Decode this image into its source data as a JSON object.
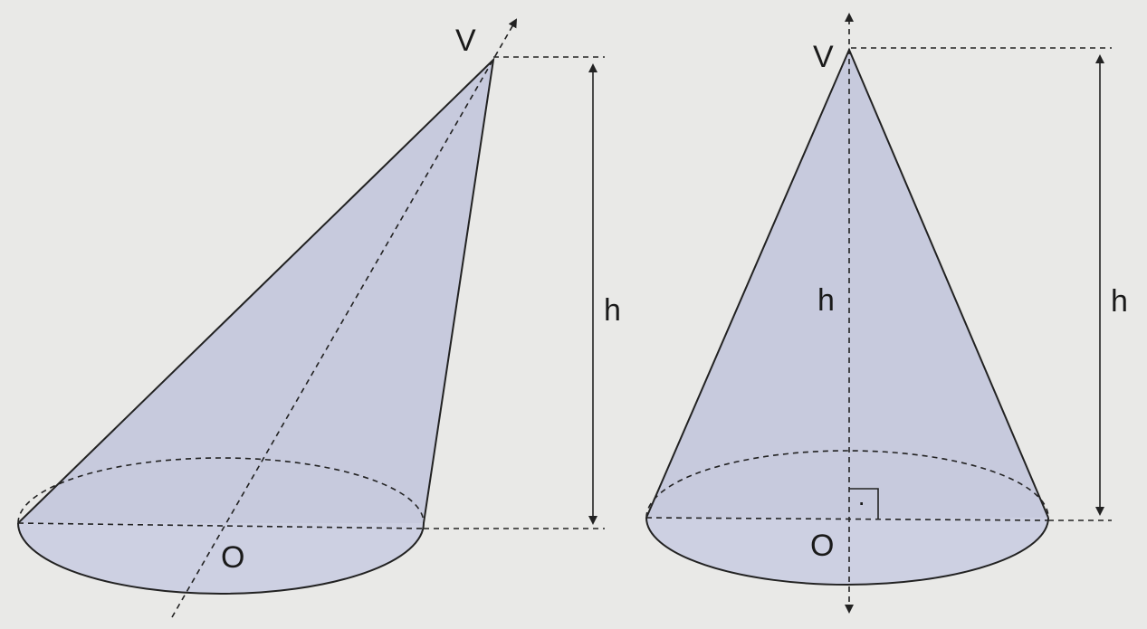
{
  "figures": [
    {
      "kind": "oblique-cone",
      "vertex_label": "V",
      "center_label": "O",
      "height_label": "h"
    },
    {
      "kind": "right-cone",
      "vertex_label": "V",
      "center_label": "O",
      "inner_height_label": "h",
      "height_label": "h",
      "right_angle_dot": "·"
    }
  ],
  "colors": {
    "background": "#e9e9e7",
    "cone_fill": "#c7cadd",
    "base_fill": "#cdd0e2",
    "stroke": "#222222"
  }
}
